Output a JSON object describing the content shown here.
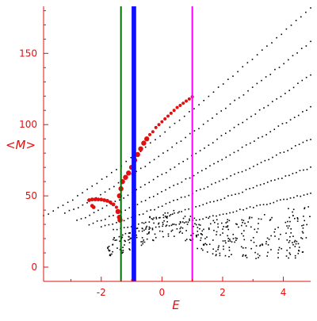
{
  "chart_data": {
    "type": "scatter",
    "title": "",
    "xlabel": "E",
    "ylabel": "<M>",
    "xlim": [
      -3.9,
      4.9
    ],
    "ylim": [
      -10,
      183
    ],
    "grid": false,
    "x_ticks": [
      -2,
      0,
      2,
      4
    ],
    "y_ticks": [
      0,
      50,
      100,
      150
    ],
    "colors": {
      "axis": "#e01010",
      "black_points": "#000000",
      "red_points": "#e01010",
      "green_line": "#007000",
      "blue_band": "#1010ff",
      "magenta_line": "#ff00ff"
    },
    "vertical_lines": [
      {
        "x": -1.35,
        "color": "green"
      },
      {
        "x_range": [
          -1.0,
          -0.85
        ],
        "color": "blue"
      },
      {
        "x": 1.0,
        "color": "magenta"
      }
    ],
    "black_branches": [
      {
        "x_start": -3.9,
        "x_end": 4.9,
        "y_start": 36,
        "y_end": 182
      },
      {
        "x_start": -3.2,
        "x_end": 4.9,
        "y_start": 38,
        "y_end": 158
      },
      {
        "x_start": -2.8,
        "x_end": 4.9,
        "y_start": 33,
        "y_end": 135
      },
      {
        "x_start": -2.4,
        "x_end": 4.9,
        "y_start": 30,
        "y_end": 112
      },
      {
        "x_start": -2.0,
        "x_end": 4.9,
        "y_start": 28,
        "y_end": 90
      },
      {
        "x_start": -1.6,
        "x_end": 4.9,
        "y_start": 26,
        "y_end": 70
      },
      {
        "x_start": -1.2,
        "x_end": 4.9,
        "y_start": 24,
        "y_end": 52
      }
    ],
    "black_scatter_region": {
      "x_range": [
        -1.8,
        4.9
      ],
      "y_range": [
        0,
        45
      ]
    },
    "red_series": [
      {
        "name": "",
        "points": [
          [
            -2.4,
            47
          ],
          [
            -2.3,
            47.5
          ],
          [
            -2.2,
            47.5
          ],
          [
            -2.1,
            47.5
          ],
          [
            -2.0,
            47.4
          ],
          [
            -1.9,
            47
          ],
          [
            -1.8,
            46.5
          ],
          [
            -1.7,
            45.5
          ],
          [
            -1.6,
            44
          ],
          [
            -1.5,
            42
          ],
          [
            -1.45,
            39
          ],
          [
            -1.4,
            35
          ],
          [
            -1.38,
            33
          ],
          [
            -2.3,
            43
          ],
          [
            -2.25,
            42
          ],
          [
            -1.4,
            50
          ],
          [
            -1.35,
            55
          ],
          [
            -1.3,
            60
          ],
          [
            -1.2,
            63
          ],
          [
            -1.1,
            66
          ],
          [
            -1.0,
            70
          ],
          [
            -0.9,
            75
          ],
          [
            -0.8,
            79
          ],
          [
            -0.7,
            83
          ],
          [
            -0.6,
            87
          ],
          [
            -0.5,
            90
          ],
          [
            -0.4,
            93
          ],
          [
            -0.3,
            95
          ],
          [
            -0.2,
            98
          ],
          [
            -0.1,
            100
          ],
          [
            0.0,
            102
          ],
          [
            0.1,
            104
          ],
          [
            0.2,
            106
          ],
          [
            0.3,
            108
          ],
          [
            0.4,
            110
          ],
          [
            0.5,
            112
          ],
          [
            0.6,
            113.5
          ],
          [
            0.7,
            115
          ],
          [
            0.8,
            116.5
          ],
          [
            0.9,
            118
          ],
          [
            1.0,
            119.5
          ]
        ]
      }
    ]
  }
}
